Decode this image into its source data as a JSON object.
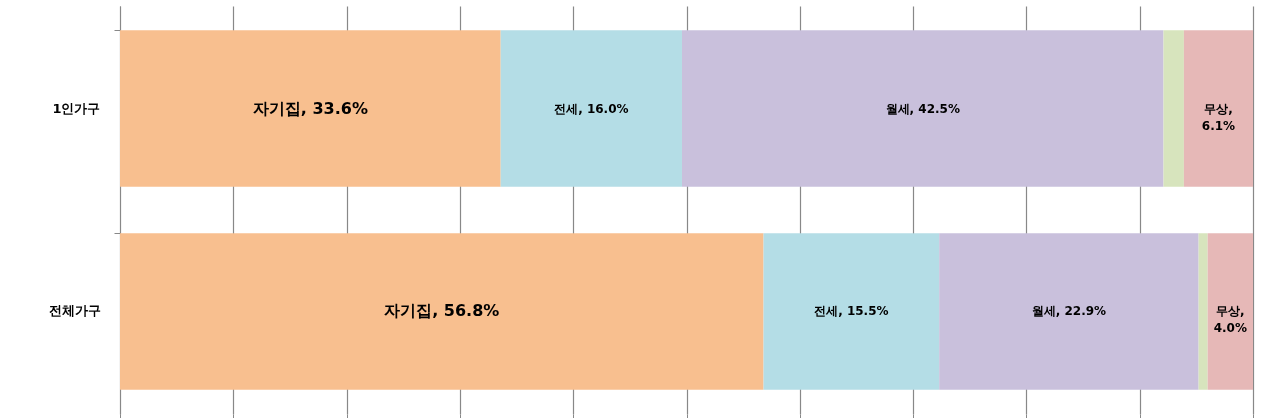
{
  "chart_data": {
    "type": "bar",
    "orientation": "horizontal",
    "stacked": true,
    "categories": [
      "1인가구",
      "전체가구"
    ],
    "series": [
      {
        "color": "#f8bf8f",
        "values": [
          33.6,
          56.8
        ],
        "value_labels": [
          "자기집, 33.6%",
          "자기집, 56.8%"
        ]
      },
      {
        "color": "#b4dde6",
        "values": [
          16.0,
          15.5
        ],
        "value_labels": [
          "전세, 16.0%",
          "전세, 15.5%"
        ]
      },
      {
        "color": "#c9c0dc",
        "values": [
          42.5,
          22.9
        ],
        "value_labels": [
          "월세, 42.5%",
          "월세, 22.9%"
        ]
      },
      {
        "color": "#d7e4bd",
        "values": [
          1.8,
          0.8
        ]
      },
      {
        "color": "#e6b8b7",
        "values": [
          6.1,
          4.0
        ],
        "value_labels": [
          "무상, 6.1%",
          "무상, 4.0%"
        ]
      }
    ],
    "xlim": [
      0,
      100
    ],
    "xticks": [
      {
        "value": 0,
        "label": null
      },
      {
        "value": 10,
        "label": null
      },
      {
        "value": 20,
        "label": null
      },
      {
        "value": 30,
        "label": null
      },
      {
        "value": 40,
        "label": null
      },
      {
        "value": 50,
        "label": null
      },
      {
        "value": 60,
        "label": null
      },
      {
        "value": 70,
        "label": null
      },
      {
        "value": 80,
        "label": null
      },
      {
        "value": 90,
        "label": null
      },
      {
        "value": 100,
        "label": null
      }
    ],
    "grid": "x",
    "tick_labels": "y"
  }
}
